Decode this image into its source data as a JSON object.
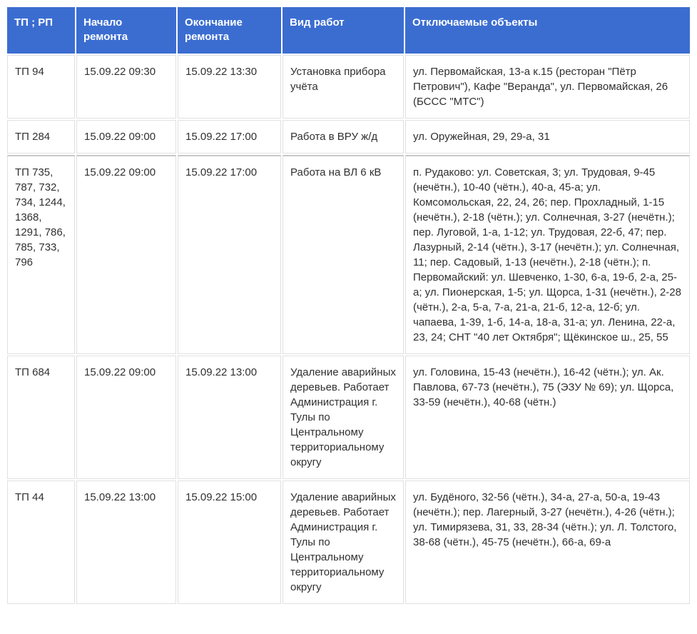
{
  "table": {
    "header_bg": "#3b6dd1",
    "header_color": "#ffffff",
    "cell_border": "#e0e0e0",
    "separator_border": "#c8c8c8",
    "text_color": "#303030",
    "font_size": 15,
    "columns": [
      "ТП ; РП",
      "Начало ремонта",
      "Окончание ремонта",
      "Вид работ",
      "Отключаемые объекты"
    ],
    "rows": [
      {
        "tp": "ТП 94",
        "start": "15.09.22 09:30",
        "end": "15.09.22 13:30",
        "work": "Установка прибора учёта",
        "objects": "ул. Первомайская, 13-а к.15 (ресторан \"Пётр Петрович\"), Кафе \"Веранда\", ул. Первомайская, 26 (БССС \"МТС\")",
        "separator": false
      },
      {
        "tp": "ТП 284",
        "start": "15.09.22 09:00",
        "end": "15.09.22 17:00",
        "work": "Работа в ВРУ ж/д",
        "objects": "ул. Оружейная, 29, 29-а, 31",
        "separator": false
      },
      {
        "tp": "ТП 735, 787, 732, 734, 1244, 1368, 1291, 786, 785, 733, 796",
        "start": "15.09.22 09:00",
        "end": "15.09.22 17:00",
        "work": "Работа на ВЛ 6 кВ",
        "objects": "п. Рудаково: ул. Советская, 3; ул. Трудовая, 9-45 (нечётн.), 10-40 (чётн.), 40-а, 45-а; ул. Комсомольская, 22, 24, 26; пер. Прохладный, 1-15 (нечётн.), 2-18 (чётн.); ул. Солнечная, 3-27 (нечётн.); пер. Луговой, 1-а, 1-12; ул. Трудовая, 22-б, 47; пер. Лазурный, 2-14 (чётн.), 3-17 (нечётн.); ул. Солнечная, 11; пер. Садовый, 1-13 (нечётн.), 2-18 (чётн.); п. Первомайский: ул. Шевченко, 1-30, 6-а, 19-б, 2-а, 25-а; ул. Пионерская, 1-5; ул. Щорса, 1-31 (нечётн.), 2-28 (чётн.), 2-а, 5-а, 7-а, 21-а, 21-б, 12-а, 12-б; ул. чапаева, 1-39, 1-б, 14-а, 18-а, 31-а; ул. Ленина, 22-а, 23, 24; СНТ \"40 лет Октября\"; Щёкинское ш., 25, 55",
        "separator": true
      },
      {
        "tp": "ТП 684",
        "start": "15.09.22 09:00",
        "end": "15.09.22 13:00",
        "work": "Удаление аварийных деревьев. Работает Администрация г. Тулы по Центральному территориальному округу",
        "objects": "ул. Головина, 15-43 (нечётн.), 16-42 (чётн.); ул. Ак. Павлова, 67-73 (нечётн.), 75 (ЭЗУ № 69); ул. Щорса, 33-59 (нечётн.), 40-68 (чётн.)",
        "separator": false
      },
      {
        "tp": "ТП 44",
        "start": "15.09.22 13:00",
        "end": "15.09.22 15:00",
        "work": "Удаление аварийных деревьев. Работает Администрация г. Тулы по Центральному территориальному округу",
        "objects": "ул. Будёного, 32-56 (чётн.), 34-а, 27-а, 50-а, 19-43 (нечётн.); пер. Лагерный, 3-27 (нечётн.), 4-26 (чётн.); ул. Тимирязева, 31, 33, 28-34 (чётн.); ул. Л. Толстого, 38-68 (чётн.), 45-75 (нечётн.), 66-а, 69-а",
        "separator": false
      }
    ]
  }
}
